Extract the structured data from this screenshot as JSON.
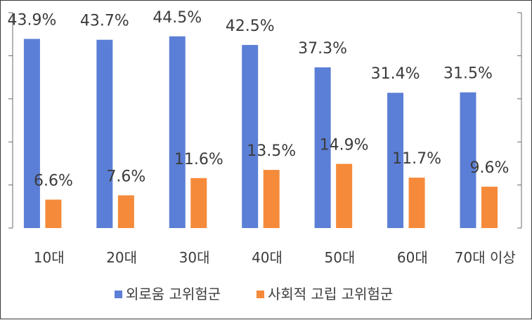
{
  "chart_data": {
    "type": "bar",
    "categories": [
      "10대",
      "20대",
      "30대",
      "40대",
      "50대",
      "60대",
      "70대 이상"
    ],
    "series": [
      {
        "name": "외로움 고위험군",
        "color": "#5b7fd6",
        "values": [
          43.9,
          43.7,
          44.5,
          42.5,
          37.3,
          31.4,
          31.5
        ],
        "labels": [
          "43.9%",
          "43.7%",
          "44.5%",
          "42.5%",
          "37.3%",
          "31.4%",
          "31.5%"
        ]
      },
      {
        "name": "사회적 고립 고위험군",
        "color": "#f58a3a",
        "values": [
          6.6,
          7.6,
          11.6,
          13.5,
          14.9,
          11.7,
          9.6
        ],
        "labels": [
          "6.6%",
          "7.6%",
          "11.6%",
          "13.5%",
          "14.9%",
          "11.7%",
          "9.6%"
        ]
      }
    ],
    "ylim": [
      0,
      50
    ],
    "grid": false,
    "legend_position": "bottom"
  }
}
